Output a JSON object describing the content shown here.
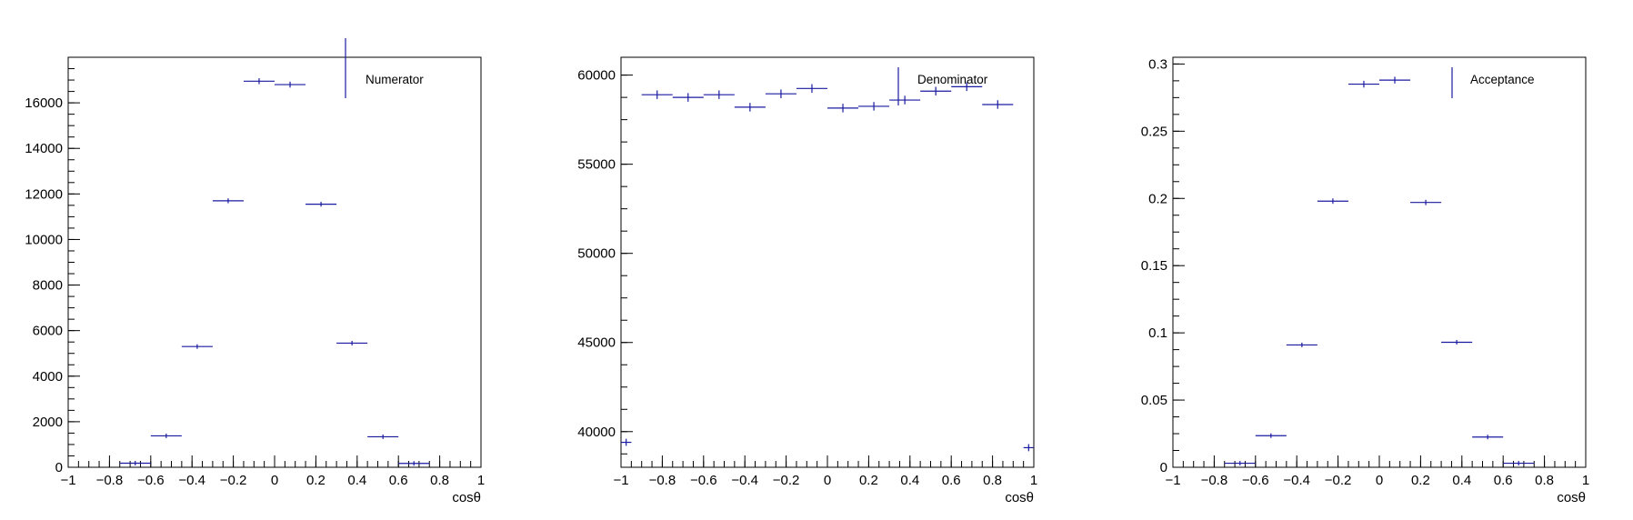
{
  "colors": {
    "marker": "#1a1aa0",
    "axis": "#000000",
    "background": "#ffffff"
  },
  "chart_data": [
    {
      "type": "scatter",
      "xlabel": "cosθ",
      "xlim": [
        -1,
        1
      ],
      "ylim": [
        0,
        18000
      ],
      "yticks": [
        0,
        2000,
        4000,
        6000,
        8000,
        10000,
        12000,
        14000,
        16000
      ],
      "xticks": [
        -1,
        -0.8,
        -0.6,
        -0.4,
        -0.2,
        0,
        0.2,
        0.4,
        0.6,
        0.8,
        1
      ],
      "legend": {
        "label": "Numerator",
        "position": "top-right"
      },
      "bin_halfwidth": 0.075,
      "x": [
        -0.675,
        -0.525,
        -0.375,
        -0.225,
        -0.075,
        0.075,
        0.225,
        0.375,
        0.525,
        0.675
      ],
      "y": [
        180,
        1380,
        5300,
        11700,
        16950,
        16800,
        11550,
        5450,
        1340,
        170
      ],
      "yerr": [
        14,
        37,
        73,
        108,
        130,
        130,
        107,
        74,
        37,
        13
      ]
    },
    {
      "type": "scatter",
      "xlabel": "cosθ",
      "xlim": [
        -1,
        1
      ],
      "ylim": [
        38000,
        61000
      ],
      "yticks": [
        40000,
        45000,
        50000,
        55000,
        60000
      ],
      "xticks": [
        -1,
        -0.8,
        -0.6,
        -0.4,
        -0.2,
        0,
        0.2,
        0.4,
        0.6,
        0.8,
        1
      ],
      "legend": {
        "label": "Denominator",
        "position": "top-right"
      },
      "bin_halfwidth": 0.075,
      "x": [
        -0.975,
        -0.825,
        -0.675,
        -0.525,
        -0.375,
        -0.225,
        -0.075,
        0.075,
        0.225,
        0.375,
        0.525,
        0.675,
        0.825,
        0.975
      ],
      "xerr": [
        0.025,
        0.075,
        0.075,
        0.075,
        0.075,
        0.075,
        0.075,
        0.075,
        0.075,
        0.075,
        0.075,
        0.075,
        0.075,
        0.025
      ],
      "y": [
        39400,
        58900,
        58750,
        58900,
        58200,
        58950,
        59250,
        58150,
        58250,
        58600,
        59100,
        59350,
        58350,
        39100
      ],
      "yerr": [
        198,
        243,
        242,
        243,
        241,
        243,
        243,
        241,
        241,
        242,
        243,
        244,
        242,
        198
      ]
    },
    {
      "type": "scatter",
      "xlabel": "cosθ",
      "xlim": [
        -1,
        1
      ],
      "ylim": [
        0,
        0.305
      ],
      "yticks": [
        0,
        0.05,
        0.1,
        0.15,
        0.2,
        0.25,
        0.3
      ],
      "xticks": [
        -1,
        -0.8,
        -0.6,
        -0.4,
        -0.2,
        0,
        0.2,
        0.4,
        0.6,
        0.8,
        1
      ],
      "legend": {
        "label": "Acceptance",
        "position": "top-right"
      },
      "bin_halfwidth": 0.075,
      "x": [
        -0.675,
        -0.525,
        -0.375,
        -0.225,
        -0.075,
        0.075,
        0.225,
        0.375,
        0.525,
        0.675
      ],
      "y": [
        0.003,
        0.0235,
        0.091,
        0.198,
        0.285,
        0.288,
        0.197,
        0.093,
        0.0225,
        0.003
      ],
      "yerr": [
        0.0003,
        0.0006,
        0.0013,
        0.002,
        0.0025,
        0.0025,
        0.002,
        0.0013,
        0.0006,
        0.0003
      ]
    }
  ]
}
